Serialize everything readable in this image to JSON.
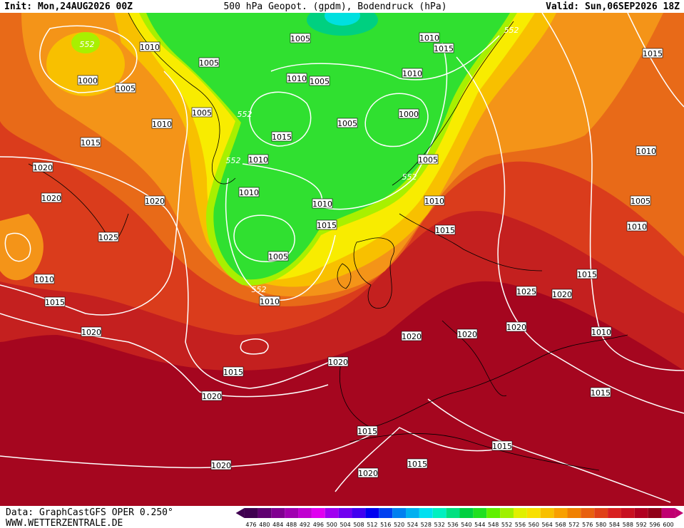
{
  "header": {
    "init": "Init: Mon,24AUG2026 00Z",
    "title": "500 hPa Geopot. (gpdm), Bodendruck (hPa)",
    "valid": "Valid: Sun,06SEP2026 18Z"
  },
  "footer": {
    "data": "Data: GraphCastGFS OPER 0.250°",
    "site": "WWW.WETTERZENTRALE.DE"
  },
  "legend": {
    "levels": [
      476,
      480,
      484,
      488,
      492,
      496,
      500,
      504,
      508,
      512,
      516,
      520,
      524,
      528,
      532,
      536,
      540,
      544,
      548,
      552,
      556,
      560,
      564,
      568,
      572,
      576,
      580,
      584,
      588,
      592,
      596,
      600
    ],
    "colors": [
      "#400050",
      "#600070",
      "#800090",
      "#a000b0",
      "#c000d0",
      "#e000f0",
      "#a000f0",
      "#7000f0",
      "#4000f0",
      "#0000f0",
      "#0040f0",
      "#0080f0",
      "#00b0f0",
      "#00e0f0",
      "#00f0c0",
      "#00e080",
      "#00d040",
      "#20e020",
      "#60f000",
      "#a0f000",
      "#e0f000",
      "#f8e000",
      "#f8c000",
      "#f8a000",
      "#f08000",
      "#e86010",
      "#e04018",
      "#d82020",
      "#c81020",
      "#b00020",
      "#900018",
      "#c00070"
    ]
  },
  "isobar_labels": [
    "552",
    "1010",
    "1005",
    "1000",
    "1005",
    "1005",
    "1010",
    "1015",
    "1020",
    "1020",
    "1020",
    "1025",
    "1010",
    "1015",
    "1020",
    "1015",
    "1020",
    "1020",
    "1005",
    "1010",
    "1015",
    "552",
    "1010",
    "1005",
    "1010",
    "552",
    "1015",
    "1005",
    "1000",
    "552",
    "1010",
    "1005",
    "552",
    "1010",
    "1010",
    "1010",
    "1015",
    "1015",
    "1005",
    "552",
    "1010",
    "1015",
    "1010",
    "1005",
    "1010",
    "1015",
    "1025",
    "1020",
    "1020",
    "1020",
    "1020",
    "1010",
    "1020",
    "1015",
    "1015",
    "1015",
    "1015",
    "1020"
  ]
}
